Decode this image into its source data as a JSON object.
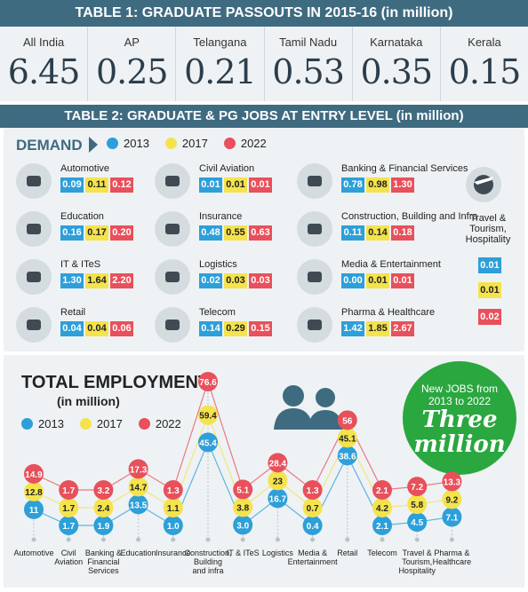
{
  "table1": {
    "title": "TABLE 1: GRADUATE PASSOUTS IN 2015-16 (in million)",
    "states": [
      {
        "name": "All India",
        "value": "6.45"
      },
      {
        "name": "AP",
        "value": "0.25"
      },
      {
        "name": "Telangana",
        "value": "0.21"
      },
      {
        "name": "Tamil Nadu",
        "value": "0.53"
      },
      {
        "name": "Karnataka",
        "value": "0.35"
      },
      {
        "name": "Kerala",
        "value": "0.15"
      }
    ]
  },
  "table2": {
    "title": "TABLE  2:  GRADUATE & PG JOBS AT ENTRY LEVEL (in million)",
    "demand_label": "DEMAND",
    "legend": [
      "2013",
      "2017",
      "2022"
    ],
    "sectors": [
      {
        "name": "Automotive",
        "icon": "car-mechanic-icon",
        "values": [
          "0.09",
          "0.11",
          "0.12"
        ]
      },
      {
        "name": "Civil Aviation",
        "icon": "airplane-icon",
        "values": [
          "0.01",
          "0.01",
          "0.01"
        ]
      },
      {
        "name": "Banking & Financial Services",
        "icon": "bank-icon",
        "values": [
          "0.78",
          "0.98",
          "1.30"
        ]
      },
      {
        "name": "Education",
        "icon": "student-icon",
        "values": [
          "0.16",
          "0.17",
          "0.20"
        ]
      },
      {
        "name": "Insurance",
        "icon": "umbrella-family-icon",
        "values": [
          "0.48",
          "0.55",
          "0.63"
        ]
      },
      {
        "name": "Construction, Building and Infra",
        "icon": "buildings-icon",
        "values": [
          "0.11",
          "0.14",
          "0.18"
        ]
      },
      {
        "name": "IT & ITeS",
        "icon": "headset-icon",
        "values": [
          "1.30",
          "1.64",
          "2.20"
        ]
      },
      {
        "name": "Logistics",
        "icon": "truck-icon",
        "values": [
          "0.02",
          "0.03",
          "0.03"
        ]
      },
      {
        "name": "Media & Entertainment",
        "icon": "television-icon",
        "values": [
          "0.00",
          "0.01",
          "0.01"
        ]
      },
      {
        "name": "Retail",
        "icon": "shopping-cart-icon",
        "values": [
          "0.04",
          "0.04",
          "0.06"
        ]
      },
      {
        "name": "Telecom",
        "icon": "phone-icon",
        "values": [
          "0.14",
          "0.29",
          "0.15"
        ]
      },
      {
        "name": "Pharma & Healthcare",
        "icon": "pill-icon",
        "values": [
          "1.42",
          "1.85",
          "2.67"
        ]
      }
    ],
    "travel": {
      "name": "Travel & Tourism, Hospitality",
      "icon": "globe-plane-icon",
      "values": [
        "0.01",
        "0.01",
        "0.02"
      ]
    }
  },
  "badge": {
    "line1": "New JOBS from",
    "line2": "2013 to 2022",
    "line3": "Three",
    "line4": "million"
  },
  "colors": {
    "y2013": "#2d9fd9",
    "y2017": "#f4e34c",
    "y2022": "#e8505b",
    "header": "#3f6b80",
    "badge": "#2aa73f"
  },
  "chart_data": {
    "type": "line",
    "title": "TOTAL EMPLOYMENT",
    "subtitle": "(in million)",
    "categories": [
      "Automotive",
      "Civil Aviation",
      "Banking & Financial Services",
      "Education",
      "Insurance",
      "Construction, Building and infra",
      "IT & ITeS",
      "Logistics",
      "Media & Entertainment",
      "Retail",
      "Telecom",
      "Travel & Tourism, Hospitality",
      "Pharma & Healthcare"
    ],
    "series": [
      {
        "name": "2013",
        "values": [
          11,
          1.7,
          1.9,
          13.5,
          1.0,
          45.4,
          3.0,
          16.7,
          0.4,
          38.6,
          2.1,
          4.5,
          7.1
        ],
        "labels": [
          "11",
          "1.7",
          "1.9",
          "13.5",
          "1.0",
          "45.4",
          "3.0",
          "16.7",
          "0.4",
          "38.6",
          "2.1",
          "4.5",
          "7.1"
        ]
      },
      {
        "name": "2017",
        "values": [
          12.8,
          1.7,
          2.4,
          14.7,
          1.1,
          59.4,
          3.8,
          23,
          0.7,
          45.1,
          4.2,
          5.8,
          9.2
        ],
        "labels": [
          "12.8",
          "1.7",
          "2.4",
          "14.7",
          "1.1",
          "59.4",
          "3.8",
          "23",
          "0.7",
          "45.1",
          "4.2",
          "5.8",
          "9.2"
        ]
      },
      {
        "name": "2022",
        "values": [
          14.9,
          1.7,
          3.2,
          17.3,
          1.3,
          76.6,
          5.1,
          28.4,
          1.3,
          56,
          2.1,
          7.2,
          13.3
        ],
        "labels": [
          "14.9",
          "1.7",
          "3.2",
          "17.3",
          "1.3",
          "76.6",
          "5.1",
          "28.4",
          "1.3",
          "56",
          "2.1",
          "7.2",
          "13.3"
        ]
      }
    ]
  }
}
